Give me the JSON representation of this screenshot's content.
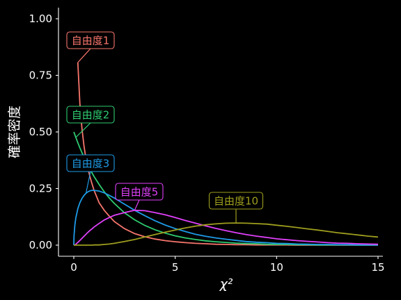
{
  "chart_data": {
    "type": "line",
    "xlabel": "χ²",
    "ylabel": "確率密度",
    "xlim": [
      0,
      15
    ],
    "ylim": [
      0,
      1
    ],
    "x_ticks": [
      0,
      5,
      10,
      15
    ],
    "x_tick_labels": [
      "0",
      "5",
      "10",
      "15"
    ],
    "y_ticks": [
      0,
      0.25,
      0.5,
      0.75,
      1.0
    ],
    "y_tick_labels": [
      "0.00",
      "0.25",
      "0.50",
      "0.75",
      "1.00"
    ],
    "grid": false,
    "legend": "none",
    "x": [
      0,
      0.01,
      0.05,
      0.1,
      0.2,
      0.3,
      0.4,
      0.5,
      0.6,
      0.7,
      0.8,
      0.9,
      1.0,
      1.25,
      1.5,
      1.75,
      2.0,
      2.5,
      3.0,
      3.5,
      4.0,
      4.5,
      5.0,
      5.5,
      6.0,
      6.5,
      7.0,
      7.5,
      8.0,
      8.5,
      9.0,
      9.5,
      10.0,
      10.5,
      11.0,
      11.5,
      12.0,
      12.5,
      13.0,
      13.5,
      14.0,
      14.5,
      15.0
    ],
    "series": [
      {
        "name": "自由度1",
        "color": "#F8766D",
        "values": [
          null,
          null,
          null,
          null,
          0.807,
          0.627,
          0.516,
          0.439,
          0.381,
          0.337,
          0.301,
          0.271,
          0.242,
          0.187,
          0.154,
          0.128,
          0.104,
          0.073,
          0.051,
          0.037,
          0.027,
          0.02,
          0.015,
          0.011,
          0.008,
          0.006,
          0.004,
          0.003,
          0.002,
          0.002,
          0.001,
          0.001,
          0.001,
          0.001,
          0.0,
          0.0,
          0.0,
          0.0,
          0.0,
          0.0,
          0.0,
          0.0,
          0.0
        ]
      },
      {
        "name": "自由度2",
        "color": "#2ECC71",
        "values": [
          0.5,
          0.498,
          0.488,
          0.476,
          0.452,
          0.43,
          0.409,
          0.389,
          0.37,
          0.352,
          0.335,
          0.319,
          0.303,
          0.268,
          0.236,
          0.208,
          0.184,
          0.143,
          0.112,
          0.087,
          0.068,
          0.053,
          0.041,
          0.032,
          0.025,
          0.019,
          0.015,
          0.012,
          0.009,
          0.007,
          0.006,
          0.004,
          0.003,
          0.003,
          0.002,
          0.002,
          0.001,
          0.001,
          0.001,
          0.001,
          0.0,
          0.0,
          0.0
        ]
      },
      {
        "name": "自由度3",
        "color": "#1E9BE8",
        "values": [
          0.0,
          0.04,
          0.087,
          0.12,
          0.161,
          0.187,
          0.206,
          0.219,
          0.229,
          0.236,
          0.24,
          0.242,
          0.242,
          0.239,
          0.231,
          0.22,
          0.208,
          0.181,
          0.154,
          0.13,
          0.108,
          0.089,
          0.073,
          0.06,
          0.048,
          0.039,
          0.032,
          0.026,
          0.021,
          0.016,
          0.013,
          0.011,
          0.008,
          0.007,
          0.005,
          0.004,
          0.003,
          0.003,
          0.002,
          0.002,
          0.001,
          0.001,
          0.001
        ]
      },
      {
        "name": "自由度5",
        "color": "#E040FB",
        "values": [
          0.0,
          0.0,
          0.001,
          0.004,
          0.012,
          0.021,
          0.03,
          0.039,
          0.048,
          0.057,
          0.065,
          0.072,
          0.08,
          0.096,
          0.111,
          0.122,
          0.132,
          0.144,
          0.154,
          0.152,
          0.144,
          0.134,
          0.122,
          0.109,
          0.097,
          0.085,
          0.074,
          0.064,
          0.055,
          0.047,
          0.04,
          0.034,
          0.028,
          0.024,
          0.02,
          0.017,
          0.014,
          0.011,
          0.009,
          0.008,
          0.006,
          0.005,
          0.004
        ]
      },
      {
        "name": "自由度10",
        "color": "#9E9E1E",
        "values": [
          0.0,
          0.0,
          0.0,
          0.0,
          0.0,
          0.0,
          0.0,
          0.0,
          0.0,
          0.0,
          0.0,
          0.0,
          0.001,
          0.001,
          0.003,
          0.005,
          0.008,
          0.016,
          0.025,
          0.036,
          0.047,
          0.057,
          0.067,
          0.076,
          0.084,
          0.09,
          0.094,
          0.097,
          0.098,
          0.097,
          0.095,
          0.093,
          0.088,
          0.083,
          0.078,
          0.072,
          0.067,
          0.061,
          0.055,
          0.05,
          0.045,
          0.04,
          0.036
        ]
      }
    ],
    "annotations": [
      {
        "text": "自由度1",
        "series": "自由度1",
        "x": 0.2
      },
      {
        "text": "自由度2",
        "series": "自由度2",
        "x": 0.1
      },
      {
        "text": "自由度3",
        "series": "自由度3",
        "x": 0.6
      },
      {
        "text": "自由度5",
        "series": "自由度5",
        "x": 3.0
      },
      {
        "text": "自由度10",
        "series": "自由度10",
        "x": 8.0
      }
    ]
  }
}
